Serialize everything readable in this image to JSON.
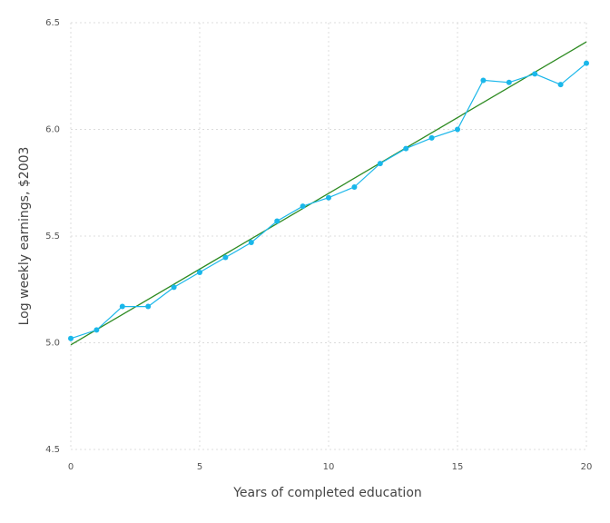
{
  "chart_data": {
    "type": "line",
    "xlabel": "Years of completed education",
    "ylabel": "Log weekly earnings, $2003",
    "xlim": [
      0,
      20
    ],
    "ylim": [
      4.5,
      6.5
    ],
    "xticks": [
      0,
      5,
      10,
      15,
      20
    ],
    "xtick_labels": [
      "0",
      "5",
      "10",
      "15",
      "20"
    ],
    "yticks": [
      4.5,
      5.0,
      5.5,
      6.0,
      6.5
    ],
    "ytick_labels": [
      "4.5",
      "5.0",
      "5.5",
      "6.0",
      "6.5"
    ],
    "grid": true,
    "series": [
      {
        "kind": "line-markers",
        "color": "#1ab7ea",
        "x": [
          0,
          1,
          2,
          3,
          4,
          5,
          6,
          7,
          8,
          9,
          10,
          11,
          12,
          13,
          14,
          15,
          16,
          17,
          18,
          19,
          20
        ],
        "y": [
          5.02,
          5.06,
          5.17,
          5.17,
          5.26,
          5.33,
          5.4,
          5.47,
          5.57,
          5.64,
          5.68,
          5.73,
          5.84,
          5.91,
          5.96,
          6.0,
          6.23,
          6.22,
          6.26,
          6.21,
          6.31
        ]
      },
      {
        "kind": "line",
        "color": "#2e8b22",
        "x": [
          0,
          20
        ],
        "y": [
          4.99,
          6.41
        ]
      }
    ]
  }
}
